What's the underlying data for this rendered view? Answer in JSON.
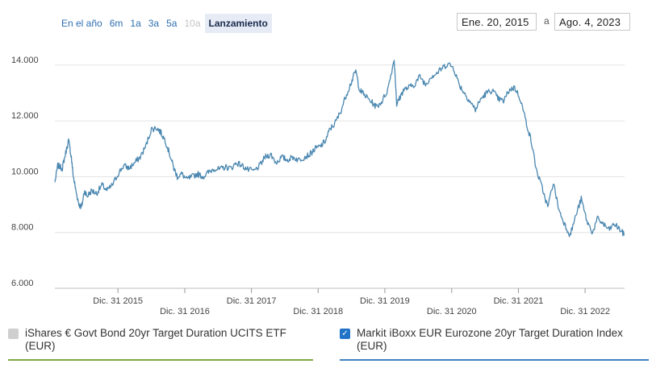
{
  "range_buttons": [
    {
      "label": "En el año",
      "state": "normal"
    },
    {
      "label": "6m",
      "state": "normal"
    },
    {
      "label": "1a",
      "state": "normal"
    },
    {
      "label": "3a",
      "state": "normal"
    },
    {
      "label": "5a",
      "state": "normal"
    },
    {
      "label": "10a",
      "state": "disabled"
    },
    {
      "label": "Lanzamiento",
      "state": "active"
    }
  ],
  "date_range": {
    "from": "Ene. 20, 2015",
    "separator": "a",
    "to": "Ago. 4, 2023"
  },
  "legend": [
    {
      "label": "iShares € Govt Bond 20yr Target Duration UCITS ETF (EUR)",
      "checked": false,
      "color": "#7fa843"
    },
    {
      "label": "Markit iBoxx EUR Eurozone 20yr Target Duration Index (EUR)",
      "checked": true,
      "color": "#3f83c4"
    }
  ],
  "chart_data": {
    "type": "line",
    "title": "",
    "xlabel": "",
    "ylabel": "",
    "xlim": [
      "2015-01-20",
      "2023-08-04"
    ],
    "ylim": [
      6000,
      14600
    ],
    "y_ticks": [
      6000,
      8000,
      10000,
      12000,
      14000
    ],
    "y_tick_labels": [
      "6.000",
      "8.000",
      "10.000",
      "12.000",
      "14.000"
    ],
    "x_ticks": [
      "2015-12-31",
      "2016-12-31",
      "2017-12-31",
      "2018-12-31",
      "2019-12-31",
      "2020-12-31",
      "2021-12-31",
      "2022-12-31"
    ],
    "x_tick_labels": [
      "Dic. 31 2015",
      "Dic. 31 2016",
      "Dic. 31 2017",
      "Dic. 31 2018",
      "Dic. 31 2019",
      "Dic. 31 2020",
      "Dic. 31 2021",
      "Dic. 31 2022"
    ],
    "grid": "horizontal",
    "series": [
      {
        "name": "Markit iBoxx EUR Eurozone 20yr Target Duration Index (EUR)",
        "color": "#4a87b0",
        "points": [
          [
            "2015-01-20",
            9800
          ],
          [
            "2015-02-05",
            10400
          ],
          [
            "2015-03-01",
            10300
          ],
          [
            "2015-03-15",
            10700
          ],
          [
            "2015-04-05",
            11300
          ],
          [
            "2015-04-20",
            10700
          ],
          [
            "2015-05-01",
            10000
          ],
          [
            "2015-05-15",
            9500
          ],
          [
            "2015-06-01",
            9000
          ],
          [
            "2015-06-15",
            8900
          ],
          [
            "2015-07-01",
            9500
          ],
          [
            "2015-07-15",
            9300
          ],
          [
            "2015-08-10",
            9500
          ],
          [
            "2015-09-05",
            9400
          ],
          [
            "2015-10-05",
            9700
          ],
          [
            "2015-11-01",
            9500
          ],
          [
            "2015-12-01",
            9700
          ],
          [
            "2016-01-01",
            10100
          ],
          [
            "2016-02-01",
            10400
          ],
          [
            "2016-03-01",
            10300
          ],
          [
            "2016-04-01",
            10500
          ],
          [
            "2016-05-01",
            10700
          ],
          [
            "2016-06-01",
            11100
          ],
          [
            "2016-07-01",
            11700
          ],
          [
            "2016-08-01",
            11750
          ],
          [
            "2016-08-20",
            11600
          ],
          [
            "2016-09-15",
            11300
          ],
          [
            "2016-10-10",
            10800
          ],
          [
            "2016-11-01",
            10300
          ],
          [
            "2016-11-20",
            10000
          ],
          [
            "2016-12-15",
            10100
          ],
          [
            "2017-01-10",
            9900
          ],
          [
            "2017-02-10",
            10000
          ],
          [
            "2017-03-10",
            10100
          ],
          [
            "2017-04-10",
            10000
          ],
          [
            "2017-05-10",
            10150
          ],
          [
            "2017-06-10",
            10300
          ],
          [
            "2017-07-10",
            10250
          ],
          [
            "2017-08-10",
            10350
          ],
          [
            "2017-09-10",
            10300
          ],
          [
            "2017-10-10",
            10500
          ],
          [
            "2017-11-10",
            10400
          ],
          [
            "2017-12-10",
            10250
          ],
          [
            "2018-01-15",
            10200
          ],
          [
            "2018-02-15",
            10400
          ],
          [
            "2018-03-15",
            10700
          ],
          [
            "2018-04-15",
            10800
          ],
          [
            "2018-05-15",
            10500
          ],
          [
            "2018-06-15",
            10700
          ],
          [
            "2018-07-15",
            10600
          ],
          [
            "2018-08-15",
            10700
          ],
          [
            "2018-09-15",
            10600
          ],
          [
            "2018-10-15",
            10700
          ],
          [
            "2018-11-15",
            10800
          ],
          [
            "2018-12-15",
            11000
          ],
          [
            "2019-01-15",
            11100
          ],
          [
            "2019-02-10",
            11300
          ],
          [
            "2019-03-05",
            11700
          ],
          [
            "2019-04-01",
            11900
          ],
          [
            "2019-05-01",
            12300
          ],
          [
            "2019-06-01",
            12900
          ],
          [
            "2019-07-01",
            13400
          ],
          [
            "2019-07-25",
            13800
          ],
          [
            "2019-08-15",
            13100
          ],
          [
            "2019-09-15",
            12900
          ],
          [
            "2019-10-15",
            12700
          ],
          [
            "2019-11-15",
            12500
          ],
          [
            "2019-12-15",
            12700
          ],
          [
            "2020-01-15",
            13100
          ],
          [
            "2020-02-20",
            14200
          ],
          [
            "2020-03-05",
            12600
          ],
          [
            "2020-03-20",
            12800
          ],
          [
            "2020-04-10",
            13100
          ],
          [
            "2020-05-10",
            13200
          ],
          [
            "2020-06-10",
            13300
          ],
          [
            "2020-07-10",
            13600
          ],
          [
            "2020-08-10",
            13300
          ],
          [
            "2020-09-10",
            13600
          ],
          [
            "2020-10-10",
            13700
          ],
          [
            "2020-11-10",
            13900
          ],
          [
            "2020-12-10",
            14050
          ],
          [
            "2021-01-10",
            13900
          ],
          [
            "2021-02-10",
            13300
          ],
          [
            "2021-03-10",
            13000
          ],
          [
            "2021-04-10",
            12700
          ],
          [
            "2021-05-10",
            12400
          ],
          [
            "2021-06-10",
            12800
          ],
          [
            "2021-07-10",
            13000
          ],
          [
            "2021-08-10",
            13100
          ],
          [
            "2021-09-10",
            12800
          ],
          [
            "2021-10-10",
            12700
          ],
          [
            "2021-11-10",
            13100
          ],
          [
            "2021-12-10",
            13200
          ],
          [
            "2022-01-10",
            12800
          ],
          [
            "2022-02-10",
            12000
          ],
          [
            "2022-03-10",
            11300
          ],
          [
            "2022-04-10",
            10200
          ],
          [
            "2022-05-10",
            9600
          ],
          [
            "2022-06-10",
            8900
          ],
          [
            "2022-07-10",
            9800
          ],
          [
            "2022-08-10",
            8800
          ],
          [
            "2022-09-10",
            8300
          ],
          [
            "2022-10-10",
            7900
          ],
          [
            "2022-11-10",
            8600
          ],
          [
            "2022-12-10",
            9200
          ],
          [
            "2023-01-10",
            8400
          ],
          [
            "2023-02-10",
            8000
          ],
          [
            "2023-03-10",
            8500
          ],
          [
            "2023-04-10",
            8300
          ],
          [
            "2023-05-10",
            8100
          ],
          [
            "2023-06-10",
            8300
          ],
          [
            "2023-07-10",
            8100
          ],
          [
            "2023-08-04",
            7900
          ]
        ]
      }
    ]
  }
}
